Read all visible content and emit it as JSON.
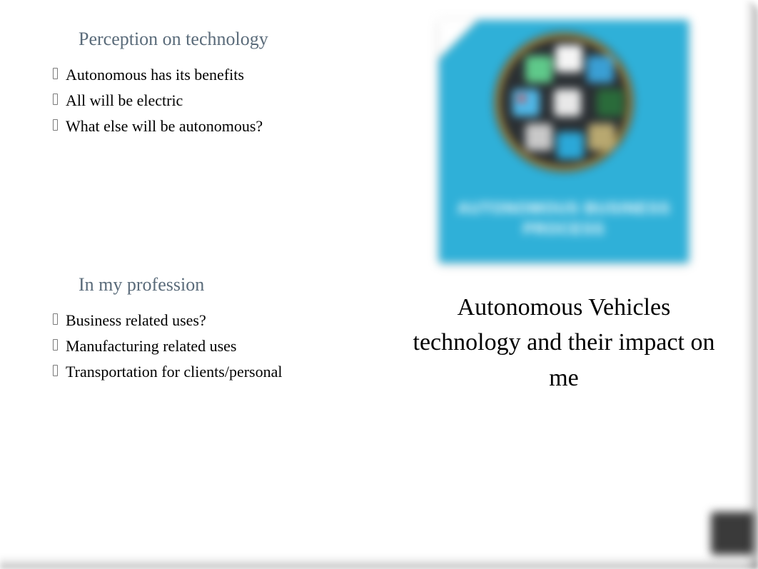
{
  "left": {
    "section1": {
      "heading": "Perception on technology",
      "items": [
        "Autonomous has its benefits",
        "All will be electric",
        "What else will be autonomous?"
      ]
    },
    "section2": {
      "heading": "In my profession",
      "items": [
        "Business related uses?",
        "Manufacturing related uses",
        "Transportation for clients/personal"
      ]
    }
  },
  "right": {
    "thumbnail": {
      "card_bg": "#2fb0d8",
      "circle_bg": "#2a2f33",
      "circle_border": "#d4a83a",
      "caption_line1": "AUTONOMOUS BUSINESS",
      "caption_line2": "PROCESS"
    },
    "title": "Autonomous Vehicles technology and their impact on me"
  },
  "colors": {
    "heading": "#5a6b7a",
    "body_text": "#000000",
    "background": "#ffffff"
  },
  "typography": {
    "heading_fontsize": 26,
    "bullet_fontsize": 22,
    "title_fontsize": 34,
    "font_family": "Georgia, serif"
  }
}
